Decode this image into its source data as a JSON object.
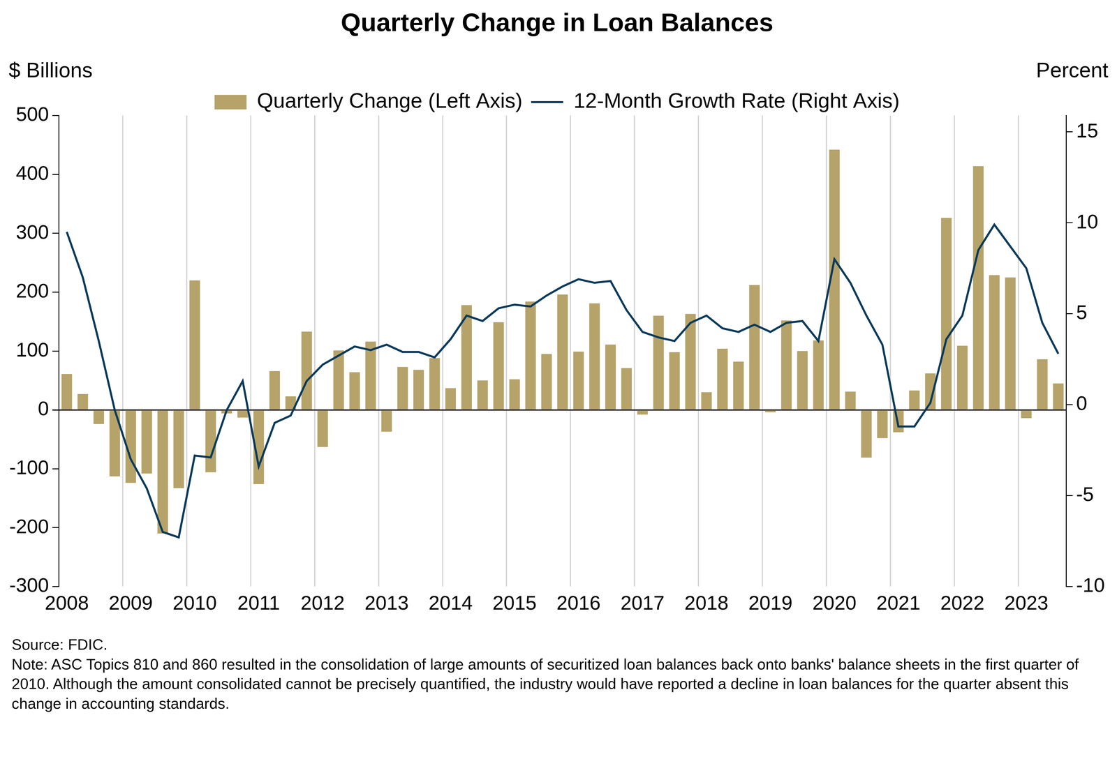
{
  "chart_data": {
    "type": "bar",
    "title": "Quarterly Change in Loan Balances",
    "y_label": "$ Billions",
    "y2_label": "Percent",
    "categories": [
      "2008",
      null,
      null,
      null,
      "2009",
      null,
      null,
      null,
      "2010",
      null,
      null,
      null,
      "2011",
      null,
      null,
      null,
      "2012",
      null,
      null,
      null,
      "2013",
      null,
      null,
      null,
      "2014",
      null,
      null,
      null,
      "2015",
      null,
      null,
      null,
      "2016",
      null,
      null,
      null,
      "2017",
      null,
      null,
      null,
      "2018",
      null,
      null,
      null,
      "2019",
      null,
      null,
      null,
      "2020",
      null,
      null,
      null,
      "2021",
      null,
      null,
      null,
      "2022",
      null,
      null,
      null,
      "2023",
      null,
      null
    ],
    "series": [
      {
        "name": "Quarterly Change (Left Axis)",
        "type": "bar",
        "color": "#B5A36A",
        "values": [
          61,
          27,
          -24,
          -113,
          -124,
          -108,
          -210,
          -133,
          220,
          -106,
          -6,
          -13,
          -126,
          66,
          23,
          133,
          -63,
          101,
          64,
          116,
          -37,
          73,
          68,
          88,
          37,
          178,
          50,
          149,
          52,
          184,
          95,
          196,
          99,
          181,
          111,
          71,
          -8,
          160,
          98,
          163,
          30,
          104,
          82,
          212,
          -4,
          152,
          100,
          118,
          442,
          31,
          -81,
          -48,
          -38,
          33,
          62,
          326,
          109,
          414,
          229,
          225,
          -14,
          86,
          45
        ]
      },
      {
        "name": "12-Month Growth Rate (Right Axis)",
        "type": "line",
        "color": "#0B3A5B",
        "axis": "y2",
        "values": [
          9.5,
          7.0,
          3.5,
          -0.3,
          -3.0,
          -4.6,
          -7.0,
          -7.3,
          -2.8,
          -2.9,
          -0.3,
          1.3,
          -3.4,
          -1.0,
          -0.6,
          1.3,
          2.2,
          2.7,
          3.2,
          3.0,
          3.3,
          2.9,
          2.9,
          2.6,
          3.6,
          4.9,
          4.6,
          5.3,
          5.5,
          5.4,
          6.0,
          6.5,
          6.9,
          6.7,
          6.8,
          5.2,
          4.0,
          3.7,
          3.5,
          4.5,
          4.9,
          4.2,
          4.0,
          4.4,
          4.0,
          4.5,
          4.6,
          3.5,
          8.0,
          6.7,
          4.9,
          3.3,
          -1.2,
          -1.2,
          0.1,
          3.6,
          4.9,
          8.5,
          9.9,
          8.7,
          7.5,
          4.5,
          2.8
        ]
      }
    ],
    "ylim": [
      -300,
      500
    ],
    "yticks": [
      -300,
      -200,
      -100,
      0,
      100,
      200,
      300,
      400,
      500
    ],
    "y2lim": [
      -10,
      15.9
    ],
    "y2ticks": [
      -10,
      -5,
      0,
      5,
      10,
      15
    ],
    "grid": true,
    "legend": "top",
    "annotations": [
      "Source: FDIC.",
      "Note: ASC Topics 810 and 860 resulted in the consolidation of large amounts of securitized loan balances back onto banks' balance sheets in the first quarter of 2010. Although the amount consolidated cannot be precisely quantified, the industry would have reported a decline in loan balances for the quarter absent this change in accounting standards."
    ]
  }
}
